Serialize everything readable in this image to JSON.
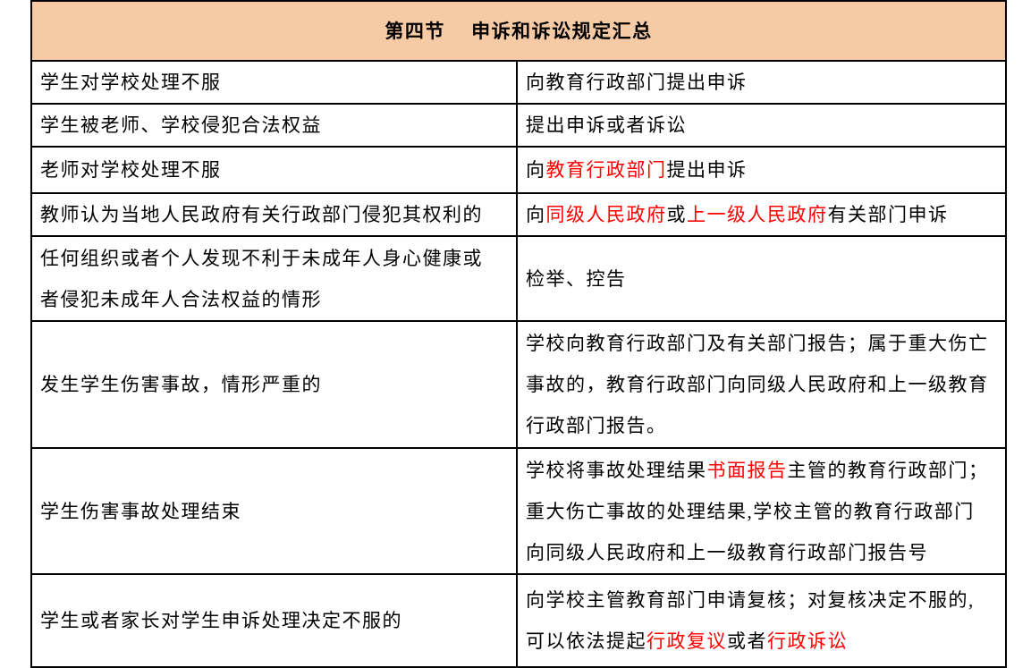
{
  "colors": {
    "header_bg": "#F5CAA5",
    "red": "#FF0000",
    "border": "#000000",
    "text": "#000000"
  },
  "header": {
    "title": "第四节　 申诉和诉讼规定汇总"
  },
  "table": {
    "rows": [
      {
        "left": [
          {
            "t": "学生对学校处理不服"
          }
        ],
        "right": [
          {
            "t": "向教育行政部门提出申诉"
          }
        ]
      },
      {
        "left": [
          {
            "t": "学生被老师、学校侵犯合法权益"
          }
        ],
        "right": [
          {
            "t": "提出申诉或者诉讼"
          }
        ]
      },
      {
        "left": [
          {
            "t": "老师对学校处理不服"
          }
        ],
        "right": [
          {
            "t": "向"
          },
          {
            "t": "教育行政部门",
            "red": true
          },
          {
            "t": "提出申诉"
          }
        ]
      },
      {
        "left": [
          {
            "t": "教师认为当地人民政府有关行政部门侵犯其权利的"
          }
        ],
        "right": [
          {
            "t": "向"
          },
          {
            "t": "同级人民政府",
            "red": true
          },
          {
            "t": "或"
          },
          {
            "t": "上一级人民政府",
            "red": true
          },
          {
            "t": "有关部门申诉"
          }
        ]
      },
      {
        "left": [
          {
            "t": "任何组织或者个人发现不利于未成年人身心健康或\n者侵犯未成年人合法权益的情形"
          }
        ],
        "right": [
          {
            "t": "检举、控告"
          }
        ]
      },
      {
        "left": [
          {
            "t": "发生学生伤害事故，情形严重的"
          }
        ],
        "right": [
          {
            "t": "学校向教育行政部门及有关部门报告；属于重大伤亡\n事故的，教育行政部门向同级人民政府和上一级教育\n行政部门报告。"
          }
        ]
      },
      {
        "left": [
          {
            "t": "学生伤害事故处理结束"
          }
        ],
        "right": [
          {
            "t": "学校将事故处理结果"
          },
          {
            "t": "书面报告",
            "red": true
          },
          {
            "t": "主管的教育行政部门；\n重大伤亡事故的处理结果,学校主管的教育行政部门\n向同级人民政府和上一级教育行政部门报告号"
          }
        ]
      },
      {
        "left": [
          {
            "t": "学生或者家长对学生申诉处理决定不服的"
          }
        ],
        "right": [
          {
            "t": "向学校主管教育部门申请复核；对复核决定不服的,\n可以依法提起"
          },
          {
            "t": "行政复议",
            "red": true
          },
          {
            "t": "或者"
          },
          {
            "t": "行政诉讼",
            "red": true
          }
        ]
      }
    ]
  }
}
